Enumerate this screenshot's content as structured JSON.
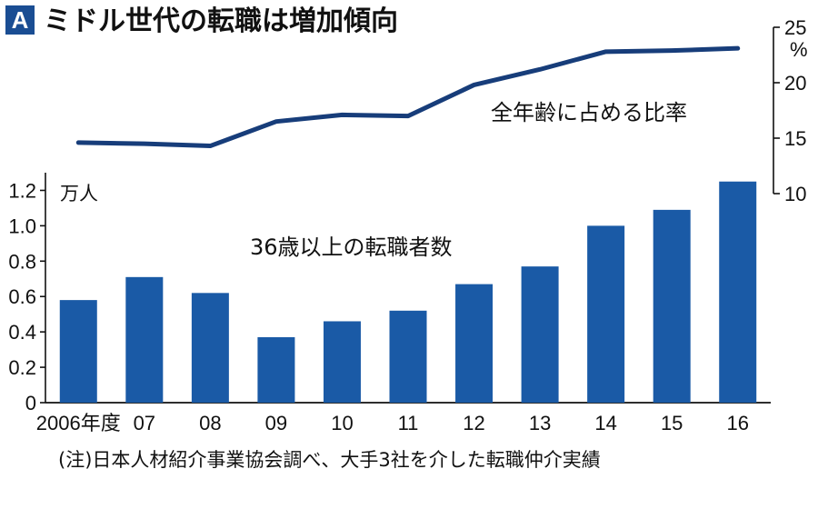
{
  "header": {
    "badge": "A",
    "title": "ミドル世代の転職は増加傾向"
  },
  "footnote": "(注)日本人材紹介事業協会調べ、大手3社を介した転職仲介実績",
  "colors": {
    "accent": "#1a4d93",
    "bar": "#1a5aa6",
    "line": "#173d7a",
    "text": "#111111"
  },
  "chart_data": [
    {
      "type": "bar",
      "label": "36歳以上の転職者数",
      "unit": "万人",
      "categories": [
        "2006年度",
        "07",
        "08",
        "09",
        "10",
        "11",
        "12",
        "13",
        "14",
        "15",
        "16"
      ],
      "values": [
        0.58,
        0.71,
        0.62,
        0.37,
        0.46,
        0.52,
        0.67,
        0.77,
        1.0,
        1.09,
        1.25
      ],
      "ylim": [
        0,
        1.3
      ],
      "yticks": [
        0,
        0.2,
        0.4,
        0.6,
        0.8,
        1.0,
        1.2
      ],
      "ytick_labels": [
        "0",
        "0.2",
        "0.4",
        "0.6",
        "0.8",
        "1.0",
        "1.2"
      ],
      "axis_side": "left"
    },
    {
      "type": "line",
      "label": "全年齢に占める比率",
      "unit": "%",
      "categories": [
        "2006年度",
        "07",
        "08",
        "09",
        "10",
        "11",
        "12",
        "13",
        "14",
        "15",
        "16"
      ],
      "values": [
        14.6,
        14.5,
        14.3,
        16.5,
        17.1,
        17.0,
        19.8,
        21.2,
        22.8,
        22.9,
        23.1
      ],
      "ylim": [
        10,
        25
      ],
      "yticks": [
        10,
        15,
        20,
        25
      ],
      "ytick_labels": [
        "10",
        "15",
        "20",
        "25"
      ],
      "axis_side": "right"
    }
  ]
}
